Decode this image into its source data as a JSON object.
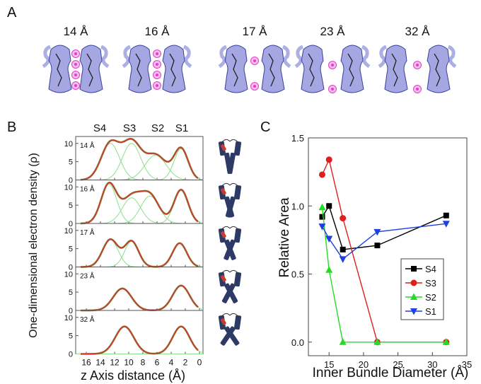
{
  "panel_letters": {
    "a": "A",
    "b": "B",
    "c": "C"
  },
  "colors": {
    "structure_blue": "#5a5fc9",
    "ion_magenta": "#e040c8",
    "density_total": "#d43a1f",
    "density_fit": "#8a6a3a",
    "gaussian": "#8be08b",
    "s4": "#000000",
    "s3": "#e01e1e",
    "s2": "#22dd22",
    "s1": "#1f3fe0",
    "helix": "#2e3a66",
    "helix_red": "#c83c2c"
  },
  "panel_a": {
    "labels": [
      "14 Å",
      "16 Å",
      "17 Å",
      "23 Å",
      "32 Å"
    ],
    "icon_names": [
      "channel-structure-14",
      "channel-structure-16",
      "channel-structure-17",
      "channel-structure-23",
      "channel-structure-32"
    ],
    "ion_counts": [
      4,
      4,
      2,
      2,
      2
    ]
  },
  "panel_b": {
    "site_labels": [
      "S4",
      "S3",
      "S2",
      "S1"
    ],
    "ylabel": "One-dimensional electron density (ρ)",
    "xlabel": "z Axis distance (Å)",
    "x_ticks": [
      "16",
      "14",
      "12",
      "10",
      "8",
      "6",
      "4",
      "2",
      "0"
    ],
    "y_ticks": [
      "0",
      "5",
      "10"
    ],
    "xlim": [
      17.5,
      -0.5
    ],
    "ylim": [
      0,
      11.5
    ]
  },
  "chart_data": [
    {
      "type": "line",
      "panel": "B",
      "xlabel": "z Axis distance (Å)",
      "ylabel": "One-dimensional electron density (ρ)",
      "xlim": [
        17.5,
        -0.5
      ],
      "ylim": [
        0,
        11.5
      ],
      "subplots": [
        {
          "label": "14 Å",
          "peaks": [
            {
              "center": 12.6,
              "height": 10.0,
              "width": 1.3
            },
            {
              "center": 9.6,
              "height": 10.0,
              "width": 1.3
            },
            {
              "center": 6.2,
              "height": 6.8,
              "width": 1.5
            },
            {
              "center": 2.6,
              "height": 8.5,
              "width": 1.0
            }
          ]
        },
        {
          "label": "16 Å",
          "peaks": [
            {
              "center": 12.8,
              "height": 10.8,
              "width": 1.1
            },
            {
              "center": 9.6,
              "height": 7.0,
              "width": 1.3
            },
            {
              "center": 7.0,
              "height": 7.5,
              "width": 1.3
            },
            {
              "center": 2.6,
              "height": 9.2,
              "width": 1.0
            }
          ]
        },
        {
          "label": "17 Å",
          "peaks": [
            {
              "center": 12.6,
              "height": 7.5,
              "width": 1.1
            },
            {
              "center": 9.6,
              "height": 7.0,
              "width": 1.0
            },
            {
              "center": 2.8,
              "height": 6.5,
              "width": 1.0
            }
          ]
        },
        {
          "label": "23 Å",
          "peaks": [
            {
              "center": 10.9,
              "height": 6.0,
              "width": 1.3
            },
            {
              "center": 2.6,
              "height": 6.8,
              "width": 1.2
            }
          ]
        },
        {
          "label": "32 Å",
          "peaks": [
            {
              "center": 10.6,
              "height": 7.5,
              "width": 1.3
            },
            {
              "center": 2.6,
              "height": 7.5,
              "width": 1.2
            }
          ]
        }
      ]
    },
    {
      "type": "line",
      "panel": "C",
      "xlabel": "Inner Bundle Diameter (Å)",
      "ylabel": "Relative Area",
      "xlim": [
        12,
        35
      ],
      "ylim": [
        -0.1,
        1.5
      ],
      "x_ticks": [
        15,
        20,
        25,
        30,
        35
      ],
      "y_ticks": [
        "0.0",
        "0.5",
        "1.0",
        "1.5"
      ],
      "legend_position": "right",
      "series": [
        {
          "name": "S4",
          "marker": "square",
          "x": [
            14,
            15,
            17,
            22,
            32
          ],
          "y": [
            0.92,
            1.0,
            0.68,
            0.71,
            0.93
          ]
        },
        {
          "name": "S3",
          "marker": "circle",
          "x": [
            14,
            15,
            17,
            22,
            32
          ],
          "y": [
            1.23,
            1.34,
            0.91,
            0.0,
            0.0
          ]
        },
        {
          "name": "S2",
          "marker": "triangle-up",
          "x": [
            14,
            15,
            17,
            22,
            32
          ],
          "y": [
            0.99,
            0.53,
            0.0,
            0.0,
            0.0
          ]
        },
        {
          "name": "S1",
          "marker": "triangle-down",
          "x": [
            14,
            15,
            17,
            22,
            32
          ],
          "y": [
            0.85,
            0.76,
            0.61,
            0.81,
            0.87
          ]
        }
      ]
    }
  ]
}
